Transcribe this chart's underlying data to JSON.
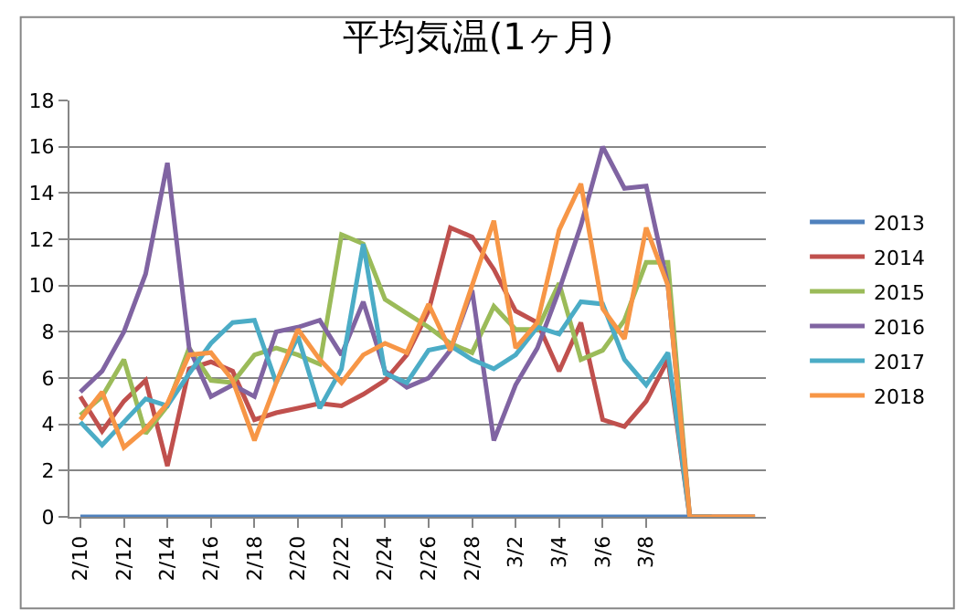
{
  "chart_data": {
    "type": "line",
    "title": "平均気温(1ヶ月)",
    "categories": [
      "2/10",
      null,
      "2/12",
      null,
      "2/14",
      null,
      "2/16",
      null,
      "2/18",
      null,
      "2/20",
      null,
      "2/22",
      null,
      "2/24",
      null,
      "2/26",
      null,
      "2/28",
      null,
      "3/2",
      null,
      "3/4",
      null,
      "3/6",
      null,
      "3/8",
      null,
      null,
      null,
      null,
      null
    ],
    "series": [
      {
        "name": "2013",
        "color": "#4f81bd",
        "values": [
          0,
          0,
          0,
          0,
          0,
          0,
          0,
          0,
          0,
          0,
          0,
          0,
          0,
          0,
          0,
          0,
          0,
          0,
          0,
          0,
          0,
          0,
          0,
          0,
          0,
          0,
          0,
          0,
          0,
          0,
          null,
          null
        ]
      },
      {
        "name": "2014",
        "color": "#c0504d",
        "values": [
          5.2,
          3.7,
          5.0,
          5.9,
          2.2,
          6.4,
          6.7,
          6.3,
          4.2,
          4.5,
          4.7,
          4.9,
          4.8,
          5.3,
          5.9,
          7.0,
          8.9,
          12.5,
          12.1,
          10.7,
          8.9,
          8.4,
          6.3,
          8.4,
          4.2,
          3.9,
          5.0,
          6.8,
          0,
          0,
          null,
          null
        ]
      },
      {
        "name": "2015",
        "color": "#9bbb59",
        "values": [
          4.4,
          5.2,
          6.8,
          3.6,
          4.8,
          7.3,
          5.9,
          5.8,
          7.0,
          7.3,
          7.0,
          6.6,
          12.2,
          11.8,
          9.4,
          8.8,
          8.2,
          7.5,
          7.1,
          9.1,
          8.1,
          8.1,
          10.1,
          6.8,
          7.2,
          8.5,
          11.0,
          11.0,
          0,
          0,
          0,
          0
        ]
      },
      {
        "name": "2016",
        "color": "#8064a2",
        "values": [
          5.4,
          6.3,
          8.0,
          10.5,
          15.3,
          7.3,
          5.2,
          5.7,
          5.2,
          8.0,
          8.2,
          8.5,
          7.0,
          9.3,
          6.3,
          5.6,
          6.0,
          7.2,
          9.8,
          3.3,
          5.7,
          7.3,
          9.8,
          12.6,
          16.0,
          14.2,
          14.3,
          10.0,
          0,
          0,
          0,
          0
        ]
      },
      {
        "name": "2017",
        "color": "#4bacc6",
        "values": [
          4.1,
          3.1,
          4.1,
          5.1,
          4.8,
          6.2,
          7.5,
          8.4,
          8.5,
          5.8,
          7.8,
          4.7,
          6.4,
          11.8,
          6.2,
          5.8,
          7.2,
          7.4,
          6.8,
          6.4,
          7.0,
          8.2,
          7.9,
          9.3,
          9.2,
          6.8,
          5.7,
          7.1,
          0,
          0,
          null,
          null
        ]
      },
      {
        "name": "2018",
        "color": "#f79646",
        "values": [
          4.2,
          5.4,
          3.0,
          3.8,
          4.9,
          7.0,
          7.1,
          5.9,
          3.3,
          5.8,
          8.1,
          6.8,
          5.8,
          7.0,
          7.5,
          7.1,
          9.2,
          7.2,
          10.0,
          12.8,
          7.3,
          8.4,
          12.4,
          14.4,
          9.0,
          7.7,
          12.5,
          10.0,
          0,
          0,
          0,
          0
        ]
      }
    ],
    "ylim": [
      0,
      18
    ],
    "yticks": [
      0,
      2,
      4,
      6,
      8,
      10,
      12,
      14,
      16,
      18
    ],
    "grid": "y",
    "legend": "right",
    "marker": "none",
    "line_style": "solid"
  }
}
